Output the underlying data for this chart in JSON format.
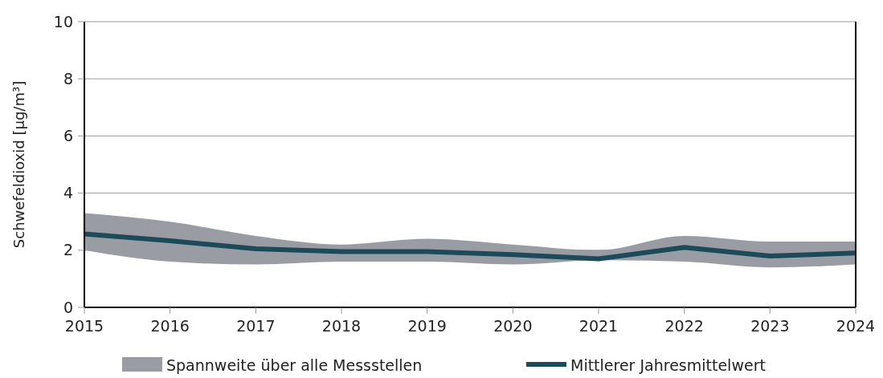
{
  "chart_data": {
    "type": "line",
    "ylabel": "Schwefeldioxid [µg/m³]",
    "x": [
      2015,
      2016,
      2017,
      2018,
      2019,
      2020,
      2021,
      2022,
      2023,
      2024
    ],
    "xlim": [
      2015,
      2024
    ],
    "xticks": [
      2015,
      2016,
      2017,
      2018,
      2019,
      2020,
      2021,
      2022,
      2023,
      2024
    ],
    "ylim": [
      0,
      10
    ],
    "yticks": [
      0,
      2,
      4,
      6,
      8,
      10
    ],
    "grid": "y",
    "legend": "bottom",
    "annotations": [
      "Spannweite über alle Messstellen"
    ],
    "series": [
      {
        "name": "Mittlerer Jahresmittelwert",
        "color": "#1b4a5a",
        "values": [
          2.57,
          2.33,
          2.05,
          1.95,
          1.95,
          1.85,
          1.7,
          2.1,
          1.8,
          1.9
        ],
        "lower": [
          2.0,
          1.6,
          1.5,
          1.6,
          1.6,
          1.5,
          1.65,
          1.6,
          1.4,
          1.5
        ],
        "upper": [
          3.3,
          3.0,
          2.5,
          2.2,
          2.4,
          2.2,
          2.0,
          2.5,
          2.3,
          2.3
        ]
      }
    ]
  }
}
